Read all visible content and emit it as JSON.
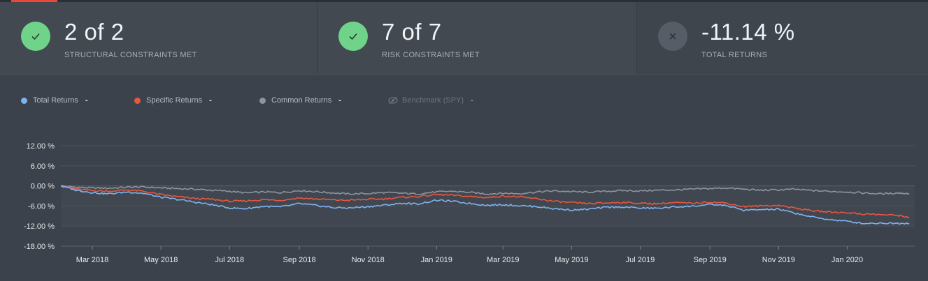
{
  "cards": [
    {
      "value": "2 of 2",
      "label": "STRUCTURAL CONSTRAINTS MET",
      "status": "ok",
      "icon": "check-icon"
    },
    {
      "value": "7 of 7",
      "label": "RISK CONSTRAINTS MET",
      "status": "ok",
      "icon": "check-icon"
    },
    {
      "value": "-11.14 %",
      "label": "TOTAL RETURNS",
      "status": "bad",
      "icon": "close-icon"
    }
  ],
  "legend": [
    {
      "name": "Total Returns",
      "value": "-",
      "color": "#7fb2f0"
    },
    {
      "name": "Specific Returns",
      "value": "-",
      "color": "#e8573f"
    },
    {
      "name": "Common Returns",
      "value": "-",
      "color": "#8e949c"
    },
    {
      "name": "Benchmark (SPY)",
      "value": "-",
      "color": "#6d737b",
      "hidden": true,
      "icon": "eye-off-icon"
    }
  ],
  "chart_data": {
    "type": "line",
    "xlabel": "",
    "ylabel": "",
    "ylim": [
      -18,
      12
    ],
    "y_ticks": [
      12,
      6,
      0,
      -6,
      -12,
      -18
    ],
    "y_tick_labels": [
      "12.00 %",
      "6.00 %",
      "0.00 %",
      "-6.00 %",
      "-12.00 %",
      "-18.00 %"
    ],
    "x_range": [
      "2018-02-01",
      "2020-03-01"
    ],
    "x_tick_labels": [
      "Mar 2018",
      "May 2018",
      "Jul 2018",
      "Sep 2018",
      "Nov 2018",
      "Jan 2019",
      "Mar 2019",
      "May 2019",
      "Jul 2019",
      "Sep 2019",
      "Nov 2019",
      "Jan 2020"
    ],
    "x_ticks": [
      "2018-03-01",
      "2018-05-01",
      "2018-07-01",
      "2018-09-01",
      "2018-11-01",
      "2019-01-01",
      "2019-03-01",
      "2019-05-01",
      "2019-07-01",
      "2019-09-01",
      "2019-11-01",
      "2020-01-01"
    ],
    "grid": true,
    "series": [
      {
        "name": "Common Returns",
        "color": "#8e949c",
        "x": [
          "2018-02-01",
          "2018-02-15",
          "2018-03-01",
          "2018-03-15",
          "2018-04-01",
          "2018-04-15",
          "2018-05-01",
          "2018-05-15",
          "2018-06-01",
          "2018-06-15",
          "2018-07-01",
          "2018-07-15",
          "2018-08-01",
          "2018-08-15",
          "2018-09-01",
          "2018-09-15",
          "2018-10-01",
          "2018-10-15",
          "2018-11-01",
          "2018-11-15",
          "2018-12-01",
          "2018-12-15",
          "2019-01-01",
          "2019-01-15",
          "2019-02-01",
          "2019-02-15",
          "2019-03-01",
          "2019-03-15",
          "2019-04-01",
          "2019-04-15",
          "2019-05-01",
          "2019-05-15",
          "2019-06-01",
          "2019-06-15",
          "2019-07-01",
          "2019-07-15",
          "2019-08-01",
          "2019-08-15",
          "2019-09-01",
          "2019-09-15",
          "2019-10-01",
          "2019-10-15",
          "2019-11-01",
          "2019-11-15",
          "2019-12-01",
          "2019-12-15",
          "2020-01-01",
          "2020-01-15",
          "2020-02-01",
          "2020-02-15",
          "2020-02-25"
        ],
        "y": [
          0.0,
          -0.4,
          -0.6,
          -0.7,
          -0.4,
          -0.3,
          -0.6,
          -0.8,
          -1.0,
          -1.3,
          -1.6,
          -2.1,
          -1.8,
          -2.0,
          -1.4,
          -1.7,
          -2.1,
          -2.4,
          -2.3,
          -2.0,
          -2.2,
          -2.4,
          -1.8,
          -1.6,
          -2.0,
          -2.4,
          -2.2,
          -2.3,
          -1.8,
          -1.5,
          -1.7,
          -1.9,
          -1.6,
          -1.4,
          -1.5,
          -1.3,
          -1.2,
          -1.0,
          -0.8,
          -0.6,
          -1.0,
          -1.3,
          -1.2,
          -1.0,
          -1.4,
          -1.6,
          -1.8,
          -2.1,
          -2.4,
          -2.1,
          -2.3
        ]
      },
      {
        "name": "Specific Returns",
        "color": "#e8573f",
        "x": [
          "2018-02-01",
          "2018-02-15",
          "2018-03-01",
          "2018-03-15",
          "2018-04-01",
          "2018-04-15",
          "2018-05-01",
          "2018-05-15",
          "2018-06-01",
          "2018-06-15",
          "2018-07-01",
          "2018-07-15",
          "2018-08-01",
          "2018-08-15",
          "2018-09-01",
          "2018-09-15",
          "2018-10-01",
          "2018-10-15",
          "2018-11-01",
          "2018-11-15",
          "2018-12-01",
          "2018-12-15",
          "2019-01-01",
          "2019-01-15",
          "2019-02-01",
          "2019-02-15",
          "2019-03-01",
          "2019-03-15",
          "2019-04-01",
          "2019-04-15",
          "2019-05-01",
          "2019-05-15",
          "2019-06-01",
          "2019-06-15",
          "2019-07-01",
          "2019-07-15",
          "2019-08-01",
          "2019-08-15",
          "2019-09-01",
          "2019-09-15",
          "2019-10-01",
          "2019-10-15",
          "2019-11-01",
          "2019-11-15",
          "2019-12-01",
          "2019-12-15",
          "2020-01-01",
          "2020-01-15",
          "2020-02-01",
          "2020-02-15",
          "2020-02-25"
        ],
        "y": [
          0.0,
          -1.0,
          -1.4,
          -1.6,
          -1.2,
          -1.6,
          -2.6,
          -3.2,
          -3.8,
          -4.0,
          -4.6,
          -4.5,
          -4.1,
          -4.3,
          -3.6,
          -3.9,
          -4.2,
          -4.3,
          -4.0,
          -3.9,
          -3.4,
          -3.2,
          -2.6,
          -2.8,
          -3.2,
          -3.5,
          -3.0,
          -3.3,
          -3.9,
          -4.6,
          -5.0,
          -5.3,
          -5.1,
          -4.9,
          -5.2,
          -5.3,
          -5.0,
          -5.2,
          -4.8,
          -5.1,
          -6.2,
          -6.0,
          -5.8,
          -6.6,
          -7.4,
          -7.8,
          -8.0,
          -8.4,
          -8.6,
          -8.8,
          -9.4
        ]
      },
      {
        "name": "Total Returns",
        "color": "#7fb2f0",
        "x": [
          "2018-02-01",
          "2018-02-15",
          "2018-03-01",
          "2018-03-15",
          "2018-04-01",
          "2018-04-15",
          "2018-05-01",
          "2018-05-15",
          "2018-06-01",
          "2018-06-15",
          "2018-07-01",
          "2018-07-15",
          "2018-08-01",
          "2018-08-15",
          "2018-09-01",
          "2018-09-15",
          "2018-10-01",
          "2018-10-15",
          "2018-11-01",
          "2018-11-15",
          "2018-12-01",
          "2018-12-15",
          "2019-01-01",
          "2019-01-15",
          "2019-02-01",
          "2019-02-15",
          "2019-03-01",
          "2019-03-15",
          "2019-04-01",
          "2019-04-15",
          "2019-05-01",
          "2019-05-15",
          "2019-06-01",
          "2019-06-15",
          "2019-07-01",
          "2019-07-15",
          "2019-08-01",
          "2019-08-15",
          "2019-09-01",
          "2019-09-15",
          "2019-10-01",
          "2019-10-15",
          "2019-11-01",
          "2019-11-15",
          "2019-12-01",
          "2019-12-15",
          "2020-01-01",
          "2020-01-15",
          "2020-02-01",
          "2020-02-15",
          "2020-02-25"
        ],
        "y": [
          0.0,
          -1.3,
          -2.0,
          -2.4,
          -1.8,
          -2.2,
          -3.4,
          -4.0,
          -4.9,
          -5.6,
          -6.6,
          -6.8,
          -6.1,
          -6.3,
          -5.3,
          -5.8,
          -6.5,
          -6.6,
          -6.2,
          -5.8,
          -5.2,
          -5.4,
          -4.3,
          -4.6,
          -5.3,
          -5.8,
          -5.6,
          -5.9,
          -6.2,
          -6.8,
          -7.2,
          -7.0,
          -6.4,
          -6.3,
          -6.6,
          -6.7,
          -6.3,
          -6.1,
          -5.6,
          -5.8,
          -7.3,
          -7.1,
          -7.0,
          -8.1,
          -9.3,
          -10.0,
          -10.6,
          -11.2,
          -11.1,
          -11.2,
          -11.14
        ]
      }
    ]
  }
}
